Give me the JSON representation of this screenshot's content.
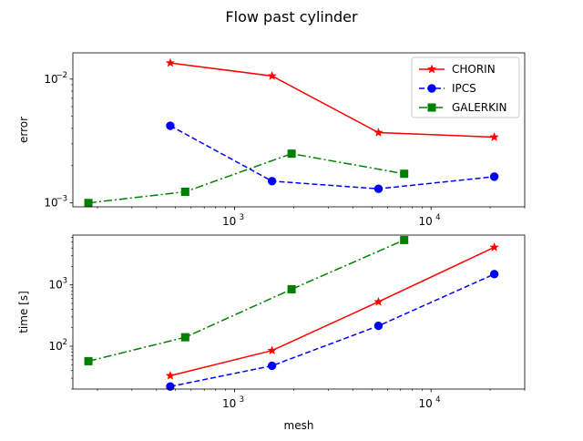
{
  "chart_data": {
    "title": "Flow past cylinder",
    "charts": [
      {
        "type": "line",
        "xscale": "log",
        "yscale": "log",
        "xlabel": "",
        "ylabel": "error",
        "xlim": [
          150,
          30000
        ],
        "ylim": [
          0.00093,
          0.0163
        ],
        "xticks": [
          {
            "v": 1000,
            "base": "10",
            "exp": "3"
          },
          {
            "v": 10000,
            "base": "10",
            "exp": "4"
          }
        ],
        "yticks": [
          {
            "v": 0.001,
            "base": "10",
            "exp": "−3"
          },
          {
            "v": 0.01,
            "base": "10",
            "exp": "−2"
          }
        ],
        "legend": "top-right",
        "series": [
          {
            "name": "CHORIN",
            "color": "#ff0000",
            "marker": "star",
            "dash": "solid",
            "x": [
              470,
              1550,
              5400,
              21000
            ],
            "y": [
              0.0135,
              0.0106,
              0.0037,
              0.0034
            ]
          },
          {
            "name": "IPCS",
            "color": "#0000ff",
            "marker": "circle",
            "dash": "dashed",
            "x": [
              470,
              1550,
              5400,
              21000
            ],
            "y": [
              0.0042,
              0.0015,
              0.0013,
              0.00163
            ]
          },
          {
            "name": "GALERKIN",
            "color": "#008000",
            "marker": "square",
            "dash": "dashdot",
            "x": [
              180,
              560,
              1950,
              7300
            ],
            "y": [
              0.001,
              0.00123,
              0.0025,
              0.00172
            ]
          }
        ]
      },
      {
        "type": "line",
        "xscale": "log",
        "yscale": "log",
        "xlabel": "mesh",
        "ylabel": "time [s]",
        "xlim": [
          150,
          30000
        ],
        "ylim": [
          20,
          6500
        ],
        "xticks": [
          {
            "v": 1000,
            "base": "10",
            "exp": "3"
          },
          {
            "v": 10000,
            "base": "10",
            "exp": "4"
          }
        ],
        "yticks": [
          {
            "v": 100,
            "base": "10",
            "exp": "2"
          },
          {
            "v": 1000,
            "base": "10",
            "exp": "3"
          }
        ],
        "series": [
          {
            "name": "CHORIN",
            "color": "#ff0000",
            "marker": "star",
            "dash": "solid",
            "x": [
              470,
              1550,
              5400,
              21000
            ],
            "y": [
              33,
              85,
              530,
              4100
            ]
          },
          {
            "name": "IPCS",
            "color": "#0000ff",
            "marker": "circle",
            "dash": "dashed",
            "x": [
              470,
              1550,
              5400,
              21000
            ],
            "y": [
              22,
              48,
              215,
              1500
            ]
          },
          {
            "name": "GALERKIN",
            "color": "#008000",
            "marker": "square",
            "dash": "dashdot",
            "x": [
              180,
              560,
              1950,
              7300
            ],
            "y": [
              57,
              140,
              850,
              5400
            ]
          }
        ]
      }
    ]
  }
}
